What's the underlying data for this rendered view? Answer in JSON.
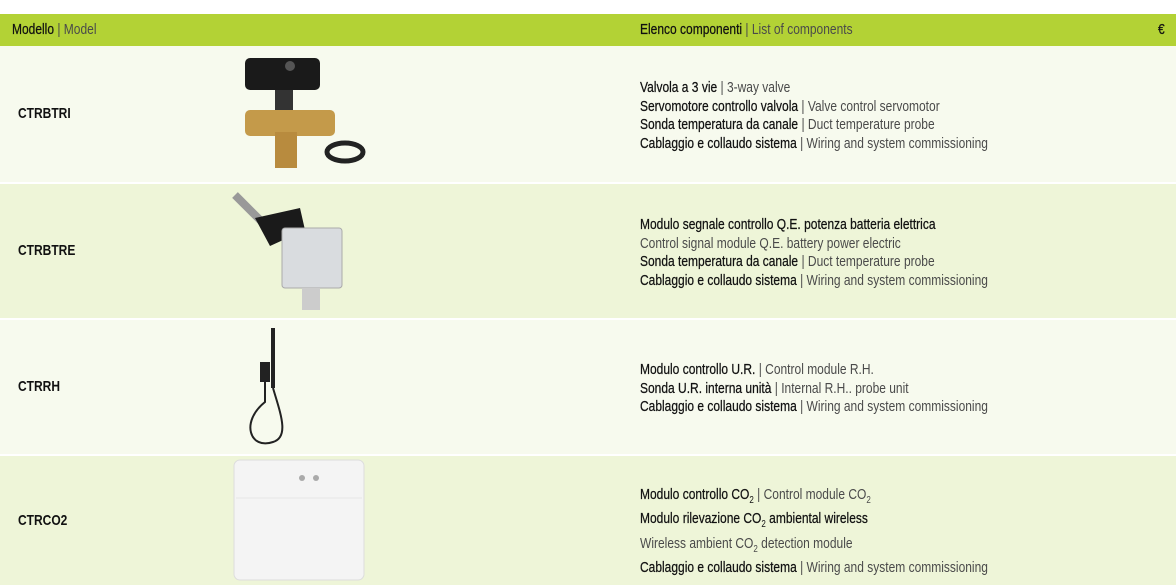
{
  "header": {
    "model": {
      "bold": "Modello",
      "normal": " | Model"
    },
    "components": {
      "bold": "Elenco componenti",
      "normal": " | List of components"
    },
    "currency": "€"
  },
  "rows": [
    {
      "model": "CTRBTRI",
      "lines": [
        [
          {
            "b": "Valvola a 3 vie"
          },
          {
            "t": " | 3-way valve"
          }
        ],
        [
          {
            "b": "Servomotore controllo valvola"
          },
          {
            "t": " | Valve control servomotor"
          }
        ],
        [
          {
            "b": "Sonda temperatura da canale"
          },
          {
            "t": " | Duct temperature probe"
          }
        ],
        [
          {
            "b": "Cablaggio e collaudo sistema"
          },
          {
            "t": " | Wiring and system commissioning"
          }
        ]
      ]
    },
    {
      "model": "CTRBTRE",
      "lines": [
        [
          {
            "b": "Modulo segnale controllo Q.E. potenza batteria elettrica"
          }
        ],
        [
          {
            "t": "Control signal module Q.E. battery power electric"
          }
        ],
        [
          {
            "b": "Sonda temperatura da canale"
          },
          {
            "t": " | Duct temperature probe"
          }
        ],
        [
          {
            "b": "Cablaggio e collaudo sistema"
          },
          {
            "t": " | Wiring and system commissioning"
          }
        ]
      ]
    },
    {
      "model": "CTRRH",
      "lines": [
        [
          {
            "b": "Modulo controllo U.R."
          },
          {
            "t": " | Control  module R.H."
          }
        ],
        [
          {
            "b": "Sonda U.R. interna unità"
          },
          {
            "t": " | Internal R.H.. probe unit"
          }
        ],
        [
          {
            "b": "Cablaggio e collaudo sistema"
          },
          {
            "t": " | Wiring and system commissioning"
          }
        ]
      ]
    },
    {
      "model": "CTRCO2",
      "lines": [
        [
          {
            "b": "Modulo controllo CO"
          },
          {
            "bsub": "2"
          },
          {
            "t": " | Control  module CO"
          },
          {
            "sub": "2"
          }
        ],
        [
          {
            "b": "Modulo rilevazione CO"
          },
          {
            "bsub": "2"
          },
          {
            "b": " ambiental wireless"
          }
        ],
        [
          {
            "t": "Wireless ambient CO"
          },
          {
            "sub": "2"
          },
          {
            "t": " detection module"
          }
        ],
        [
          {
            "b": "Cablaggio e collaudo sistema"
          },
          {
            "t": " | Wiring and system commissioning"
          }
        ]
      ]
    }
  ]
}
